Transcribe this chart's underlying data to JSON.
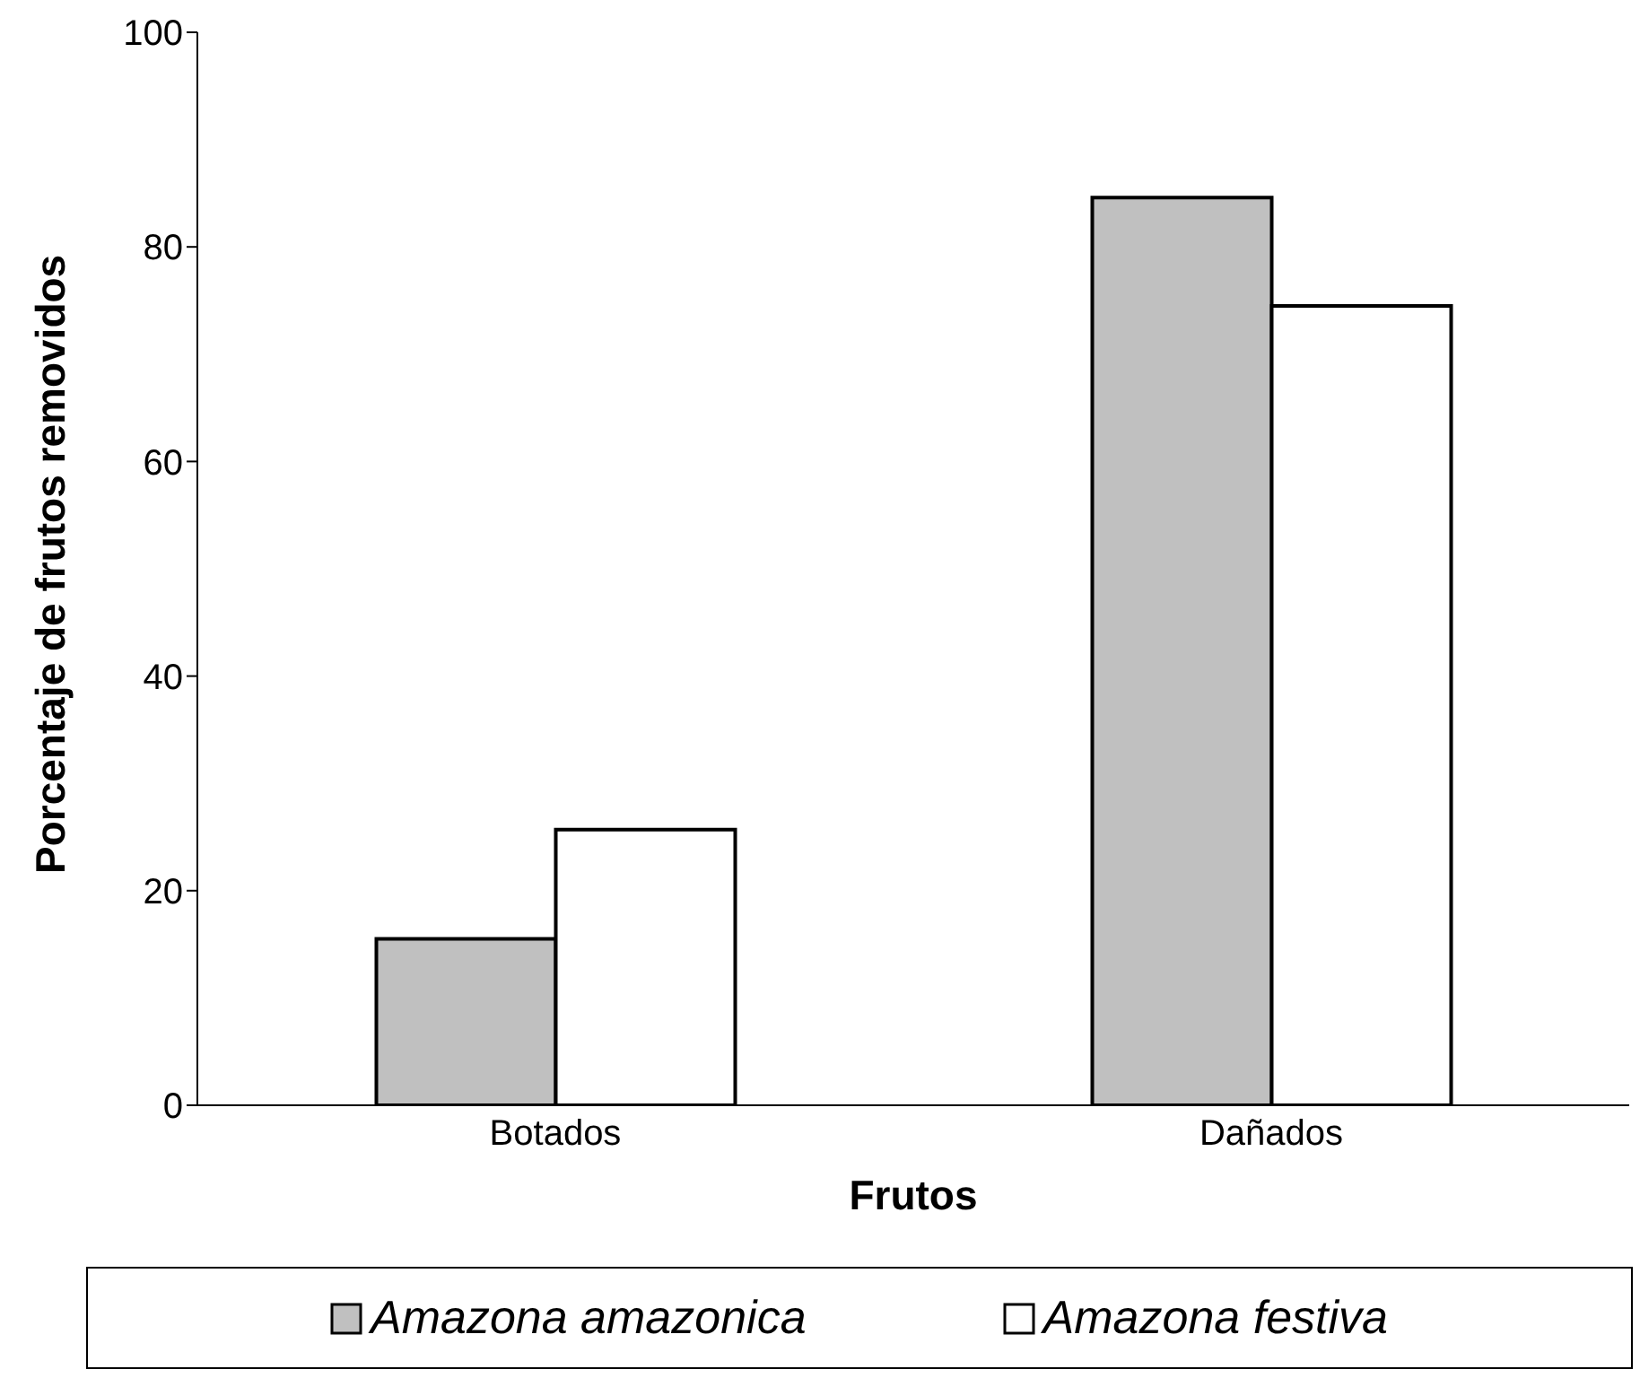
{
  "chart_data": {
    "type": "bar",
    "xlabel": "Frutos",
    "ylabel": "Porcentaje de frutos removidos",
    "categories": [
      "Botados",
      "Dañados"
    ],
    "series": [
      {
        "name": "Amazona amazonica",
        "color": "#c0c0c0",
        "values": [
          15.5,
          84.6
        ]
      },
      {
        "name": "Amazona festiva",
        "color": "#ffffff",
        "values": [
          25.7,
          74.5
        ]
      }
    ],
    "ylim": [
      0,
      100
    ],
    "yticks": [
      0,
      20,
      40,
      60,
      80,
      100
    ],
    "grid": false,
    "legend": "bottom"
  }
}
